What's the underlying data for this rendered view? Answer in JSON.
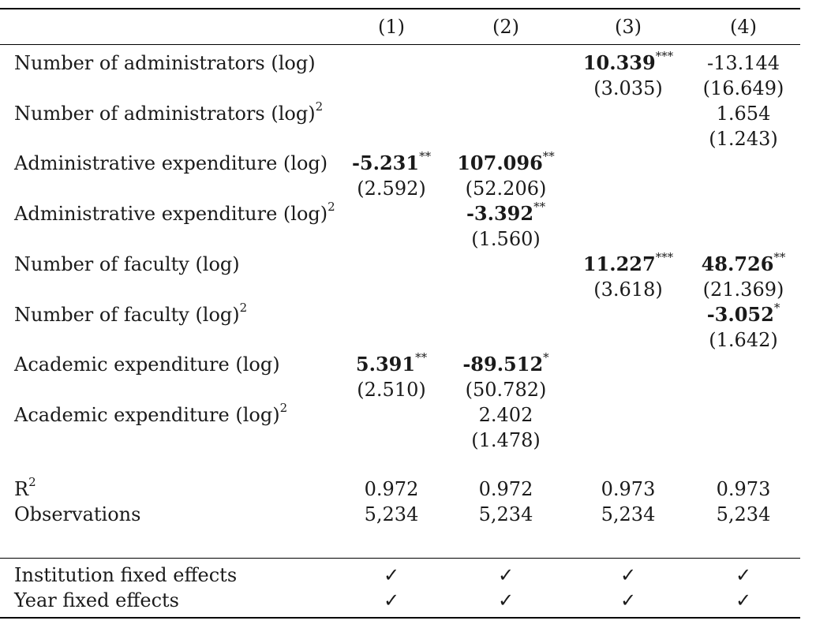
{
  "columns": [
    "(1)",
    "(2)",
    "(3)",
    "(4)"
  ],
  "rows": [
    {
      "label": "Number of administrators (log)",
      "sup": "",
      "coef": [
        "",
        "",
        "10.339",
        "-13.144"
      ],
      "bold": [
        false,
        false,
        true,
        false
      ],
      "stars": [
        "",
        "",
        "***",
        ""
      ],
      "se": [
        "",
        "",
        "(3.035)",
        "(16.649)"
      ]
    },
    {
      "label": "Number of administrators (log)",
      "sup": "2",
      "coef": [
        "",
        "",
        "",
        "1.654"
      ],
      "bold": [
        false,
        false,
        false,
        false
      ],
      "stars": [
        "",
        "",
        "",
        ""
      ],
      "se": [
        "",
        "",
        "",
        "(1.243)"
      ]
    },
    {
      "label": "Administrative expenditure (log)",
      "sup": "",
      "coef": [
        "-5.231",
        "107.096",
        "",
        ""
      ],
      "bold": [
        true,
        true,
        false,
        false
      ],
      "stars": [
        "**",
        "**",
        "",
        ""
      ],
      "se": [
        "(2.592)",
        "(52.206)",
        "",
        ""
      ]
    },
    {
      "label": "Administrative expenditure (log)",
      "sup": "2",
      "coef": [
        "",
        "-3.392",
        "",
        ""
      ],
      "bold": [
        false,
        true,
        false,
        false
      ],
      "stars": [
        "",
        "**",
        "",
        ""
      ],
      "se": [
        "",
        "(1.560)",
        "",
        ""
      ]
    },
    {
      "label": "Number of faculty (log)",
      "sup": "",
      "coef": [
        "",
        "",
        "11.227",
        "48.726"
      ],
      "bold": [
        false,
        false,
        true,
        true
      ],
      "stars": [
        "",
        "",
        "***",
        "**"
      ],
      "se": [
        "",
        "",
        "(3.618)",
        "(21.369)"
      ]
    },
    {
      "label": "Number of faculty (log)",
      "sup": "2",
      "coef": [
        "",
        "",
        "",
        "-3.052"
      ],
      "bold": [
        false,
        false,
        false,
        true
      ],
      "stars": [
        "",
        "",
        "",
        "*"
      ],
      "se": [
        "",
        "",
        "",
        "(1.642)"
      ]
    },
    {
      "label": "Academic expenditure (log)",
      "sup": "",
      "coef": [
        "5.391",
        "-89.512",
        "",
        ""
      ],
      "bold": [
        true,
        true,
        false,
        false
      ],
      "stars": [
        "**",
        "*",
        "",
        ""
      ],
      "se": [
        "(2.510)",
        "(50.782)",
        "",
        ""
      ]
    },
    {
      "label": "Academic expenditure (log)",
      "sup": "2",
      "coef": [
        "",
        "2.402",
        "",
        ""
      ],
      "bold": [
        false,
        false,
        false,
        false
      ],
      "stars": [
        "",
        "",
        "",
        ""
      ],
      "se": [
        "",
        "(1.478)",
        "",
        ""
      ]
    }
  ],
  "stats": {
    "r2": {
      "label": "R",
      "sup": "2",
      "values": [
        "0.972",
        "0.972",
        "0.973",
        "0.973"
      ]
    },
    "obs": {
      "label": "Observations",
      "values": [
        "5,234",
        "5,234",
        "5,234",
        "5,234"
      ]
    }
  },
  "fixed_effects": [
    {
      "label": "Institution fixed effects",
      "marks": [
        "✓",
        "✓",
        "✓",
        "✓"
      ]
    },
    {
      "label": "Year fixed effects",
      "marks": [
        "✓",
        "✓",
        "✓",
        "✓"
      ]
    }
  ]
}
